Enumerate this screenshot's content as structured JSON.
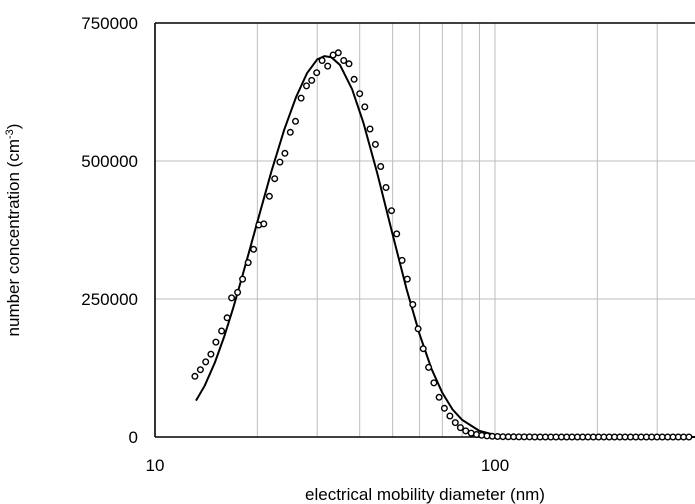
{
  "chart_data": {
    "type": "scatter",
    "xlabel": "electrical mobility diameter (nm)",
    "ylabel_main": "number concentration (cm",
    "ylabel_sup": "-3",
    "ylabel_end": ")",
    "xscale": "log",
    "xlim": [
      10,
      400
    ],
    "ylim": [
      0,
      750000
    ],
    "x_ticks": [
      10,
      100
    ],
    "x_tick_labels": [
      "10",
      "100"
    ],
    "y_ticks": [
      0,
      250000,
      500000,
      750000
    ],
    "y_tick_labels": [
      "0",
      "250000",
      "500000",
      "750000"
    ],
    "grid": true,
    "legend": "none",
    "series": [
      {
        "kind": "markers",
        "marker": "open-circle",
        "x": [
          13.1,
          13.6,
          14.1,
          14.6,
          15.1,
          15.7,
          16.3,
          16.8,
          17.5,
          18.1,
          18.8,
          19.5,
          20.2,
          20.9,
          21.7,
          22.5,
          23.3,
          24.1,
          25.0,
          25.9,
          26.9,
          27.9,
          28.9,
          29.9,
          31.0,
          32.2,
          33.4,
          34.6,
          35.9,
          37.2,
          38.5,
          40.0,
          41.4,
          42.9,
          44.5,
          46.1,
          47.8,
          49.6,
          51.4,
          53.3,
          55.2,
          57.3,
          59.4,
          61.5,
          63.8,
          66.1,
          68.5,
          71.0,
          73.7,
          76.4,
          79.1,
          82.0,
          85.1,
          88.2,
          91.4,
          94.7,
          98.2,
          101.8,
          105.5,
          109.4,
          113.4,
          117.6,
          121.9,
          126.3,
          130.9,
          135.7,
          140.7,
          145.9,
          151.2,
          156.8,
          162.5,
          168.5,
          174.7,
          181.1,
          187.7,
          194.6,
          201.7,
          209.1,
          216.7,
          224.7,
          232.9,
          241.4,
          250.3,
          259.5,
          269.0,
          278.8,
          289.0,
          299.6,
          310.6,
          322.0,
          333.8,
          346.0,
          358.7,
          371.8,
          385.5,
          399.0
        ],
        "y": [
          110000,
          122000,
          136000,
          150000,
          172000,
          192000,
          216000,
          252000,
          262000,
          286000,
          316000,
          340000,
          384000,
          386000,
          436000,
          468000,
          498000,
          514000,
          552000,
          572000,
          614000,
          636000,
          646000,
          660000,
          682000,
          672000,
          692000,
          696000,
          682000,
          676000,
          648000,
          622000,
          598000,
          558000,
          530000,
          490000,
          452000,
          410000,
          368000,
          320000,
          286000,
          240000,
          196000,
          160000,
          126000,
          98000,
          72000,
          52000,
          38000,
          26000,
          17000,
          11000,
          7000,
          4500,
          3000,
          2000,
          1300,
          900,
          600,
          400,
          300,
          200,
          150,
          100,
          80,
          60,
          50,
          40,
          30,
          25,
          20,
          15,
          12,
          10,
          8,
          6,
          5,
          4,
          3,
          2,
          2,
          1,
          1,
          1,
          1,
          0,
          0,
          0,
          0,
          0,
          0,
          0,
          0,
          0,
          0,
          0
        ]
      },
      {
        "kind": "line",
        "x": [
          13.2,
          14,
          15,
          16,
          17,
          18,
          19,
          20,
          22,
          24,
          26,
          28,
          30,
          31.5,
          33,
          35,
          38,
          41,
          45,
          50,
          55,
          60,
          65,
          70,
          75,
          80,
          90,
          100,
          110,
          120,
          140,
          170,
          220,
          300,
          399
        ],
        "y": [
          66000,
          93000,
          135000,
          183000,
          235000,
          288000,
          340000,
          390000,
          481000,
          557000,
          616000,
          659000,
          684000,
          690000,
          688000,
          674000,
          630000,
          570000,
          479000,
          367000,
          267000,
          186000,
          124000,
          80000,
          50000,
          31000,
          11000,
          3700,
          1200,
          400,
          50,
          0,
          0,
          0,
          0
        ]
      }
    ]
  }
}
